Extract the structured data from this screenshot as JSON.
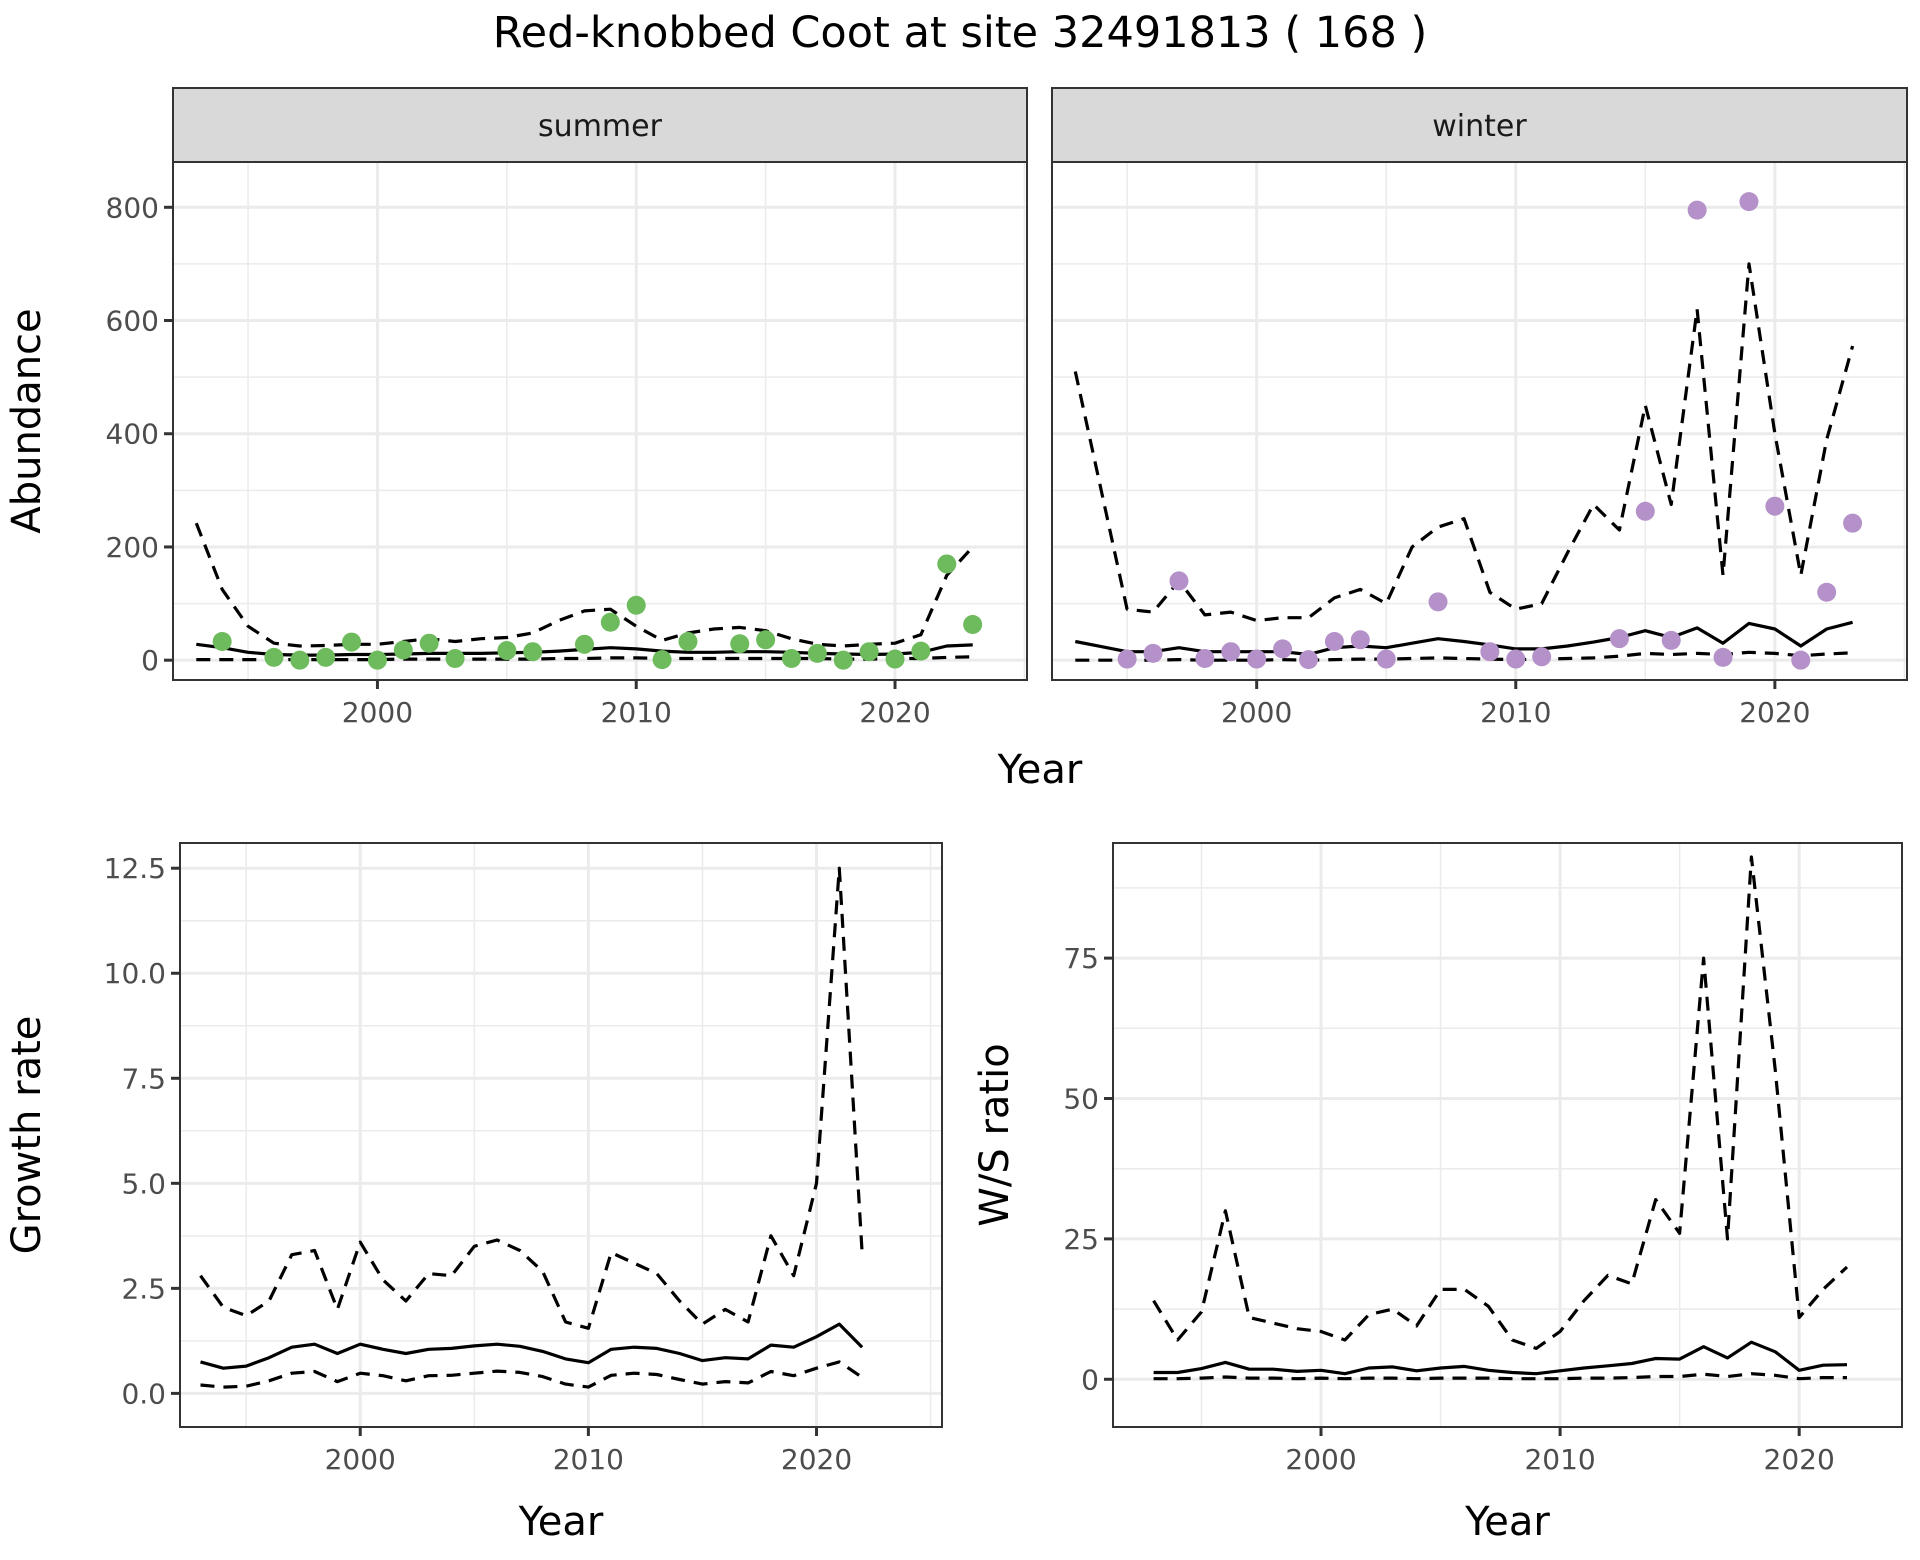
{
  "title": "Red-knobbed Coot at site 32491813 ( 168 )",
  "chart_data": [
    {
      "id": "abundance",
      "type": "line+scatter (faceted)",
      "xlabel": "Year",
      "ylabel": "Abundance",
      "xlim": [
        1992.1,
        2025.1
      ],
      "ylim": [
        -35,
        880
      ],
      "xticks": [
        2000,
        2010,
        2020
      ],
      "xtick_labels": [
        "2000",
        "2010",
        "2020"
      ],
      "yticks": [
        0,
        200,
        400,
        600,
        800
      ],
      "ytick_labels": [
        "0",
        "200",
        "400",
        "600",
        "800"
      ],
      "grid": true,
      "facets": [
        {
          "label": "summer",
          "point_color": "#6dbb5c",
          "observed": {
            "x": [
              1994,
              1996,
              1997,
              1998,
              1999,
              2000,
              2001,
              2002,
              2003,
              2005,
              2006,
              2008,
              2009,
              2010,
              2011,
              2012,
              2014,
              2015,
              2016,
              2017,
              2018,
              2019,
              2020,
              2021,
              2022,
              2023
            ],
            "y": [
              33,
              5,
              0,
              5,
              32,
              0,
              18,
              30,
              3,
              17,
              15,
              28,
              67,
              97,
              1,
              33,
              29,
              36,
              3,
              12,
              0,
              15,
              2,
              16,
              170,
              63
            ]
          },
          "series": [
            {
              "name": "estimate",
              "style": "solid",
              "x": [
                1993,
                1994,
                1995,
                1996,
                1997,
                1998,
                1999,
                2000,
                2001,
                2002,
                2003,
                2004,
                2005,
                2006,
                2007,
                2008,
                2009,
                2010,
                2011,
                2012,
                2013,
                2014,
                2015,
                2016,
                2017,
                2018,
                2019,
                2020,
                2021,
                2022,
                2023
              ],
              "y": [
                28,
                22,
                14,
                10,
                9,
                9,
                10,
                10,
                11,
                12,
                12,
                12,
                13,
                14,
                16,
                19,
                22,
                20,
                16,
                14,
                14,
                15,
                15,
                14,
                12,
                11,
                10,
                11,
                14,
                25,
                27
              ]
            },
            {
              "name": "upper",
              "style": "dashed",
              "x": [
                1993,
                1994,
                1995,
                1996,
                1997,
                1998,
                1999,
                2000,
                2001,
                2002,
                2003,
                2004,
                2005,
                2006,
                2007,
                2008,
                2009,
                2010,
                2011,
                2012,
                2013,
                2014,
                2015,
                2016,
                2017,
                2018,
                2019,
                2020,
                2021,
                2022,
                2023
              ],
              "y": [
                242,
                125,
                60,
                30,
                25,
                26,
                28,
                28,
                33,
                38,
                33,
                38,
                40,
                48,
                70,
                87,
                90,
                60,
                35,
                48,
                55,
                58,
                52,
                38,
                28,
                25,
                28,
                30,
                45,
                150,
                200
              ]
            },
            {
              "name": "lower",
              "style": "dashed",
              "x": [
                1993,
                1994,
                1995,
                1996,
                1997,
                1998,
                1999,
                2000,
                2001,
                2002,
                2003,
                2004,
                2005,
                2006,
                2007,
                2008,
                2009,
                2010,
                2011,
                2012,
                2013,
                2014,
                2015,
                2016,
                2017,
                2018,
                2019,
                2020,
                2021,
                2022,
                2023
              ],
              "y": [
                1,
                1,
                1,
                1,
                1,
                1,
                1,
                1,
                2,
                2,
                2,
                2,
                2,
                2,
                3,
                3,
                4,
                4,
                3,
                3,
                3,
                3,
                3,
                3,
                3,
                2,
                2,
                3,
                3,
                5,
                6
              ]
            }
          ]
        },
        {
          "label": "winter",
          "point_color": "#b491c8",
          "observed": {
            "x": [
              1995,
              1996,
              1997,
              1998,
              1999,
              2000,
              2001,
              2002,
              2003,
              2004,
              2005,
              2007,
              2009,
              2010,
              2011,
              2014,
              2015,
              2016,
              2017,
              2018,
              2019,
              2020,
              2021,
              2022,
              2023
            ],
            "y": [
              2,
              12,
              140,
              3,
              15,
              2,
              20,
              1,
              33,
              36,
              2,
              103,
              15,
              2,
              6,
              38,
              263,
              35,
              795,
              5,
              810,
              272,
              0,
              120,
              242
            ]
          },
          "series": [
            {
              "name": "estimate",
              "style": "solid",
              "x": [
                1993,
                1994,
                1995,
                1996,
                1997,
                1998,
                1999,
                2000,
                2001,
                2002,
                2003,
                2004,
                2005,
                2006,
                2007,
                2008,
                2009,
                2010,
                2011,
                2012,
                2013,
                2014,
                2015,
                2016,
                2017,
                2018,
                2019,
                2020,
                2021,
                2022,
                2023
              ],
              "y": [
                33,
                24,
                15,
                15,
                22,
                15,
                15,
                15,
                15,
                10,
                22,
                25,
                22,
                30,
                38,
                33,
                27,
                20,
                20,
                25,
                32,
                40,
                52,
                40,
                57,
                30,
                65,
                55,
                25,
                55,
                67
              ]
            },
            {
              "name": "upper",
              "style": "dashed",
              "x": [
                1993,
                1994,
                1995,
                1996,
                1997,
                1998,
                1999,
                2000,
                2001,
                2002,
                2003,
                2004,
                2005,
                2006,
                2007,
                2008,
                2009,
                2010,
                2011,
                2012,
                2013,
                2014,
                2015,
                2016,
                2017,
                2018,
                2019,
                2020,
                2021,
                2022,
                2023
              ],
              "y": [
                510,
                300,
                90,
                85,
                140,
                80,
                85,
                70,
                75,
                75,
                110,
                125,
                100,
                200,
                235,
                250,
                120,
                90,
                100,
                190,
                275,
                230,
                450,
                275,
                620,
                150,
                700,
                400,
                150,
                390,
                555
              ]
            },
            {
              "name": "lower",
              "style": "dashed",
              "x": [
                1993,
                1994,
                1995,
                1996,
                1997,
                1998,
                1999,
                2000,
                2001,
                2002,
                2003,
                2004,
                2005,
                2006,
                2007,
                2008,
                2009,
                2010,
                2011,
                2012,
                2013,
                2014,
                2015,
                2016,
                2017,
                2018,
                2019,
                2020,
                2021,
                2022,
                2023
              ],
              "y": [
                0,
                0,
                0,
                0,
                1,
                0,
                0,
                0,
                1,
                0,
                1,
                2,
                2,
                3,
                4,
                3,
                2,
                1,
                2,
                3,
                4,
                7,
                12,
                10,
                12,
                10,
                14,
                12,
                8,
                11,
                13
              ]
            }
          ]
        }
      ]
    },
    {
      "id": "growth-rate",
      "type": "line",
      "xlabel": "Year",
      "ylabel": "Growth rate",
      "xlim": [
        1992.1,
        2025.5
      ],
      "ylim": [
        -0.8,
        13.1
      ],
      "xticks": [
        2000,
        2010,
        2020
      ],
      "xtick_labels": [
        "2000",
        "2010",
        "2020"
      ],
      "yticks": [
        0,
        2.5,
        5,
        7.5,
        10,
        12.5
      ],
      "ytick_labels": [
        "0.0",
        "2.5",
        "5.0",
        "7.5",
        "10.0",
        "12.5"
      ],
      "grid": true,
      "x": [
        1993,
        1994,
        1995,
        1996,
        1997,
        1998,
        1999,
        2000,
        2001,
        2002,
        2003,
        2004,
        2005,
        2006,
        2007,
        2008,
        2009,
        2010,
        2011,
        2012,
        2013,
        2014,
        2015,
        2016,
        2017,
        2018,
        2019,
        2020,
        2021,
        2022
      ],
      "series": [
        {
          "name": "estimate",
          "style": "solid",
          "y": [
            0.75,
            0.6,
            0.65,
            0.85,
            1.1,
            1.17,
            0.95,
            1.17,
            1.05,
            0.95,
            1.05,
            1.07,
            1.13,
            1.17,
            1.12,
            1.0,
            0.82,
            0.73,
            1.05,
            1.1,
            1.07,
            0.95,
            0.78,
            0.85,
            0.82,
            1.15,
            1.1,
            1.35,
            1.65,
            1.1
          ]
        },
        {
          "name": "upper",
          "style": "dashed",
          "y": [
            2.8,
            2.05,
            1.85,
            2.2,
            3.3,
            3.4,
            2.0,
            3.6,
            2.7,
            2.2,
            2.85,
            2.8,
            3.5,
            3.65,
            3.4,
            2.9,
            1.7,
            1.55,
            3.35,
            3.1,
            2.85,
            2.2,
            1.65,
            2.0,
            1.7,
            3.75,
            2.8,
            5.0,
            12.5,
            3.35
          ]
        },
        {
          "name": "lower",
          "style": "dashed",
          "y": [
            0.2,
            0.15,
            0.17,
            0.3,
            0.48,
            0.52,
            0.28,
            0.48,
            0.42,
            0.3,
            0.42,
            0.43,
            0.48,
            0.53,
            0.5,
            0.4,
            0.22,
            0.15,
            0.43,
            0.48,
            0.45,
            0.33,
            0.22,
            0.28,
            0.25,
            0.52,
            0.42,
            0.6,
            0.75,
            0.38
          ]
        }
      ]
    },
    {
      "id": "ws-ratio",
      "type": "line",
      "xlabel": "Year",
      "ylabel": "W/S ratio",
      "xlim": [
        1991.3,
        2024.3
      ],
      "ylim": [
        -8.5,
        95.5
      ],
      "xticks": [
        2000,
        2010,
        2020
      ],
      "xtick_labels": [
        "2000",
        "2010",
        "2020"
      ],
      "yticks": [
        0,
        25,
        50,
        75
      ],
      "ytick_labels": [
        "0",
        "25",
        "50",
        "75"
      ],
      "grid": true,
      "x": [
        1993,
        1994,
        1995,
        1996,
        1997,
        1998,
        1999,
        2000,
        2001,
        2002,
        2003,
        2004,
        2005,
        2006,
        2007,
        2008,
        2009,
        2010,
        2011,
        2012,
        2013,
        2014,
        2015,
        2016,
        2017,
        2018,
        2019,
        2020,
        2021,
        2022
      ],
      "series": [
        {
          "name": "estimate",
          "style": "solid",
          "y": [
            1.2,
            1.2,
            1.9,
            3.0,
            1.8,
            1.8,
            1.4,
            1.6,
            1.0,
            2.0,
            2.2,
            1.5,
            2.0,
            2.3,
            1.6,
            1.2,
            1.0,
            1.5,
            2.0,
            2.4,
            2.8,
            3.7,
            3.6,
            5.8,
            3.8,
            6.6,
            4.9,
            1.6,
            2.5,
            2.6
          ]
        },
        {
          "name": "upper",
          "style": "dashed",
          "y": [
            14,
            7,
            12,
            30,
            11,
            10,
            9,
            8.5,
            7,
            11.5,
            12.5,
            9.5,
            16,
            16,
            13,
            7,
            5.5,
            8.5,
            14,
            18.5,
            17,
            32,
            26,
            75,
            25,
            93,
            55,
            11,
            16,
            20
          ]
        },
        {
          "name": "lower",
          "style": "dashed",
          "y": [
            0.1,
            0.1,
            0.2,
            0.4,
            0.2,
            0.2,
            0.1,
            0.2,
            0.1,
            0.2,
            0.2,
            0.1,
            0.2,
            0.2,
            0.2,
            0.1,
            0.1,
            0.1,
            0.2,
            0.2,
            0.3,
            0.5,
            0.5,
            0.9,
            0.5,
            1.0,
            0.7,
            0.1,
            0.3,
            0.3
          ]
        }
      ]
    }
  ]
}
